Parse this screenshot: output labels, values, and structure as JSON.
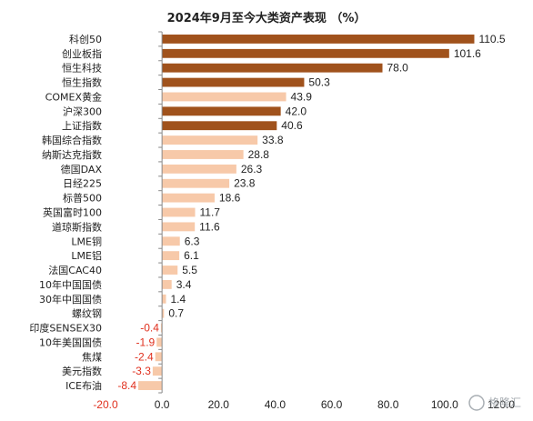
{
  "chart_data": {
    "type": "bar",
    "orientation": "horizontal",
    "title": "2024年9月至今大类资产表现 （%）",
    "categories": [
      "科创50",
      "创业板指",
      "恒生科技",
      "恒生指数",
      "COMEX黄金",
      "沪深300",
      "上证指数",
      "韩国综合指数",
      "纳斯达克指数",
      "德国DAX",
      "日经225",
      "标普500",
      "英国富时100",
      "道琼斯指数",
      "LME铜",
      "LME铝",
      "法国CAC40",
      "10年中国国债",
      "30年中国国债",
      "螺纹钢",
      "印度SENSEX30",
      "10年美国国债",
      "焦煤",
      "美元指数",
      "ICE布油"
    ],
    "values": [
      110.5,
      101.6,
      78.0,
      50.3,
      43.9,
      42.0,
      40.6,
      33.8,
      28.8,
      26.3,
      23.8,
      18.6,
      11.7,
      11.6,
      6.3,
      6.1,
      5.5,
      3.4,
      1.4,
      0.7,
      -0.4,
      -1.9,
      -2.4,
      -3.3,
      -8.4
    ],
    "value_labels": [
      "110.5",
      "101.6",
      "78.0",
      "50.3",
      "43.9",
      "42.0",
      "40.6",
      "33.8",
      "28.8",
      "26.3",
      "23.8",
      "18.6",
      "11.7",
      "11.6",
      "6.3",
      "6.1",
      "5.5",
      "3.4",
      "1.4",
      "0.7",
      "-0.4",
      "-1.9",
      "-2.4",
      "-3.3",
      "-8.4"
    ],
    "highlight": [
      true,
      true,
      true,
      true,
      false,
      true,
      true,
      false,
      false,
      false,
      false,
      false,
      false,
      false,
      false,
      false,
      false,
      false,
      false,
      false,
      false,
      false,
      false,
      false,
      false
    ],
    "xlim": [
      -20,
      120
    ],
    "xticks": [
      -20,
      0,
      20,
      40,
      60,
      80,
      100,
      120
    ],
    "xtick_labels": [
      "-20.0",
      "0.0",
      "20.0",
      "40.0",
      "60.0",
      "80.0",
      "100.0",
      "120.0"
    ],
    "grid": false,
    "legend": "none",
    "colors": {
      "highlight": "#a0521c",
      "normal": "#f7c9a9",
      "negative_text": "#e0301e",
      "axis": "#888888"
    }
  },
  "watermark": {
    "text": "格隆汇",
    "icon": "G-logo-icon"
  }
}
